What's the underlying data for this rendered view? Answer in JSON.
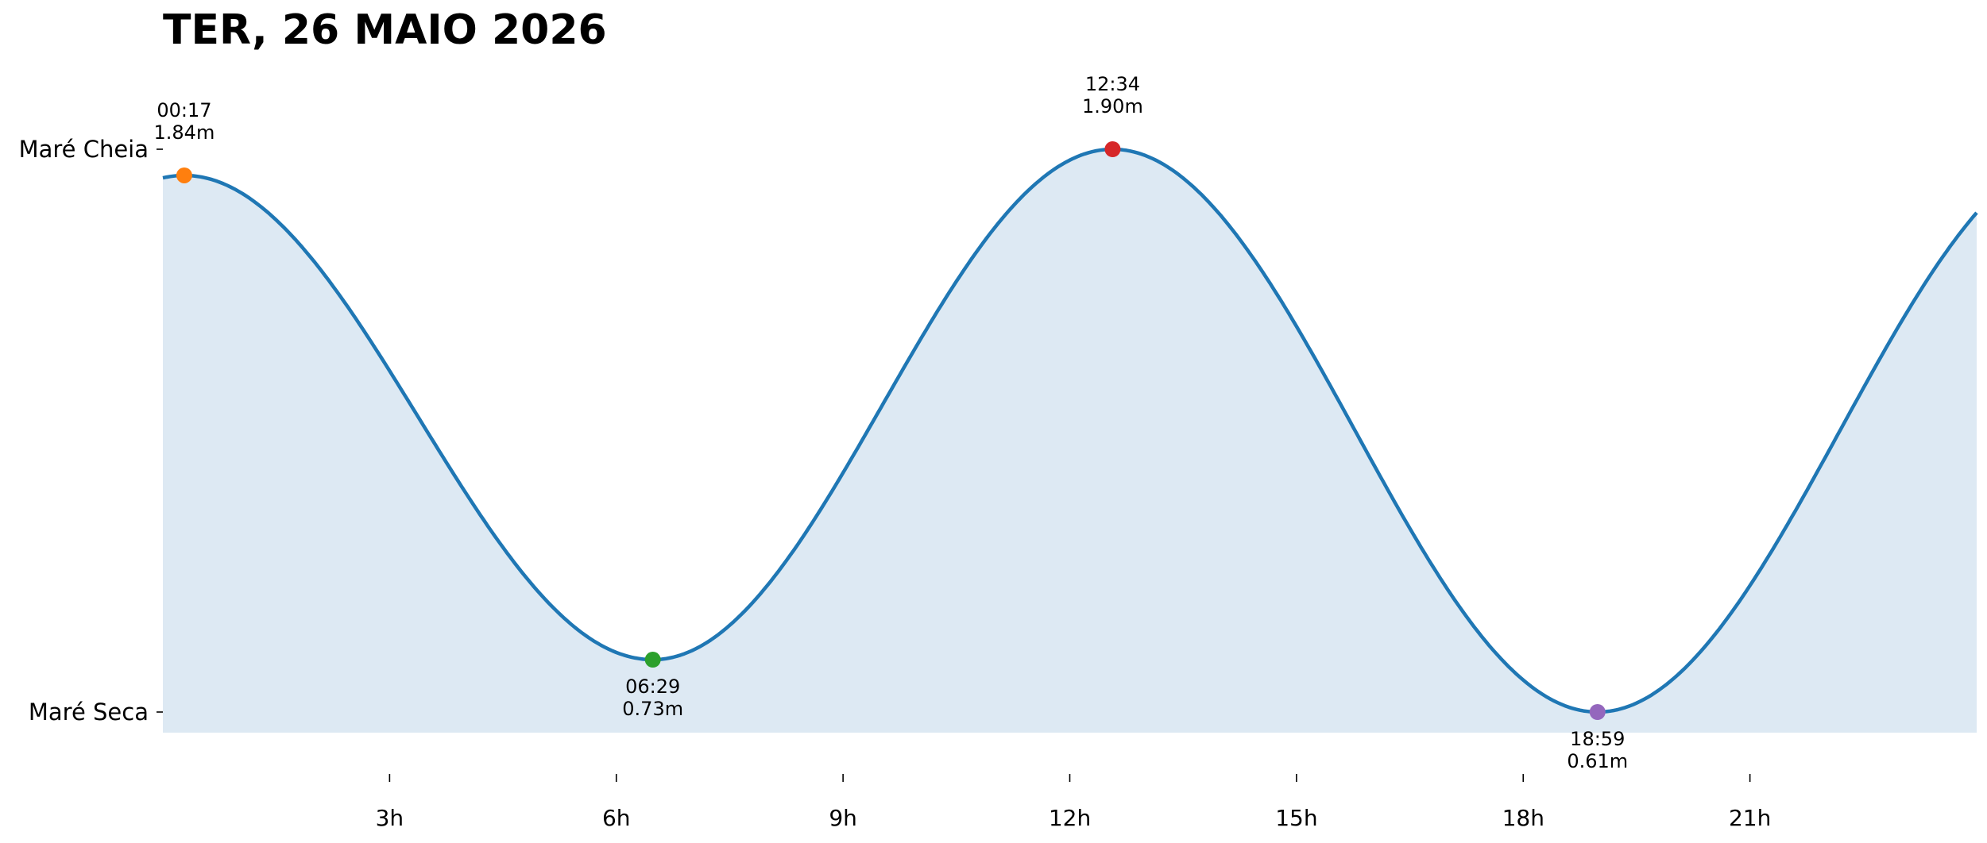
{
  "chart_data": {
    "type": "line",
    "title": "TER, 26 MAIO 2026",
    "xlabel": "",
    "ylabel": "",
    "xlim": [
      0,
      24
    ],
    "ylim": [
      0.61,
      1.9
    ],
    "x_ticks": [
      {
        "value": 3,
        "label": "3h"
      },
      {
        "value": 6,
        "label": "6h"
      },
      {
        "value": 9,
        "label": "9h"
      },
      {
        "value": 12,
        "label": "12h"
      },
      {
        "value": 15,
        "label": "15h"
      },
      {
        "value": 18,
        "label": "18h"
      },
      {
        "value": 21,
        "label": "21h"
      }
    ],
    "y_ticks": [
      {
        "value": 1.9,
        "label": "Maré Cheia"
      },
      {
        "value": 0.61,
        "label": "Maré Seca"
      }
    ],
    "extremes": [
      {
        "time": "00:17",
        "x": 0.283,
        "height": 1.84,
        "label": "1.84m",
        "kind": "high",
        "color": "#ff7f0e"
      },
      {
        "time": "06:29",
        "x": 6.483,
        "height": 0.73,
        "label": "0.73m",
        "kind": "low",
        "color": "#2ca02c"
      },
      {
        "time": "12:34",
        "x": 12.567,
        "height": 1.9,
        "label": "1.90m",
        "kind": "high",
        "color": "#d62728"
      },
      {
        "time": "18:59",
        "x": 18.983,
        "height": 0.61,
        "label": "0.61m",
        "kind": "low",
        "color": "#9467bd"
      }
    ],
    "series": [
      {
        "line_color": "#1f77b4",
        "fill_color": "#dde9f3",
        "points": [
          [
            0,
            1.83
          ],
          [
            24,
            1.81
          ]
        ]
      }
    ],
    "grid": false,
    "legend": "none"
  }
}
